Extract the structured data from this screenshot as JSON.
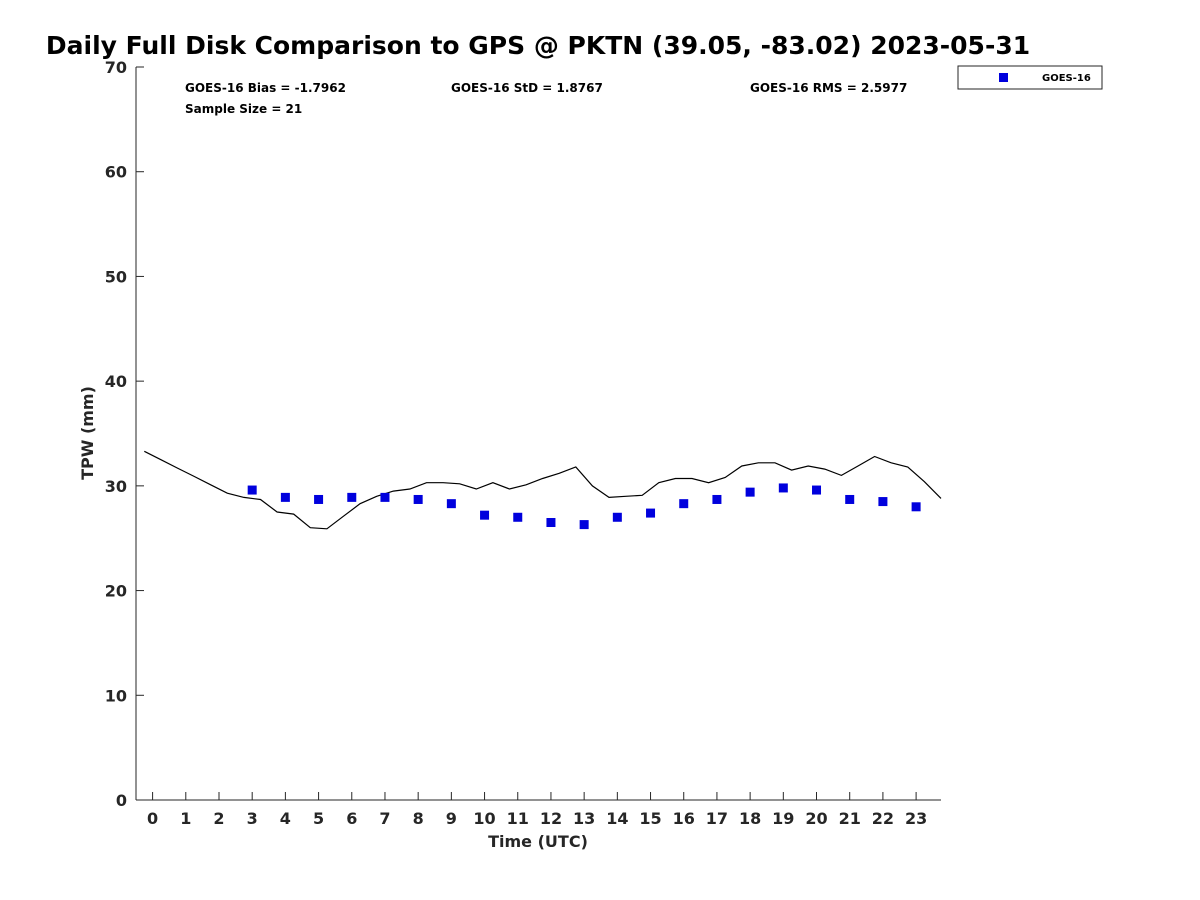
{
  "chart_data": {
    "type": "scatter",
    "title": "Daily Full Disk Comparison to GPS @ PKTN (39.05, -83.02) 2023-05-31",
    "xlabel": "Time (UTC)",
    "ylabel": "TPW (mm)",
    "xlim": [
      -0.5,
      23.75
    ],
    "ylim": [
      0,
      70
    ],
    "x_ticks": [
      0,
      1,
      2,
      3,
      4,
      5,
      6,
      7,
      8,
      9,
      10,
      11,
      12,
      13,
      14,
      15,
      16,
      17,
      18,
      19,
      20,
      21,
      22,
      23
    ],
    "y_ticks": [
      0,
      10,
      20,
      30,
      40,
      50,
      60,
      70
    ],
    "grid": false,
    "legend": {
      "position": "top-right",
      "entries": [
        "GOES-16"
      ]
    },
    "stats": {
      "bias": "GOES-16 Bias = -1.7962",
      "std": "GOES-16 StD = 1.8767",
      "rms": "GOES-16 RMS = 2.5977",
      "sample": "Sample Size = 21"
    },
    "series": [
      {
        "name": "GOES-16",
        "kind": "scatter",
        "marker": "square",
        "color": "#0000dd",
        "x": [
          3,
          4,
          5,
          6,
          7,
          8,
          9,
          10,
          11,
          12,
          13,
          14,
          15,
          16,
          17,
          18,
          19,
          20,
          21,
          22,
          23
        ],
        "y": [
          29.6,
          28.9,
          28.7,
          28.9,
          28.9,
          28.7,
          28.3,
          27.2,
          27.0,
          26.5,
          26.3,
          27.0,
          27.4,
          28.3,
          28.7,
          29.4,
          29.8,
          29.6,
          28.7,
          28.5,
          28.0
        ]
      },
      {
        "kind": "line",
        "color": "#000000",
        "x": [
          -0.25,
          0.25,
          0.75,
          1.25,
          1.75,
          2.25,
          2.75,
          3.25,
          3.75,
          4.25,
          4.75,
          5.25,
          5.75,
          6.25,
          6.75,
          7.25,
          7.75,
          8.25,
          8.75,
          9.25,
          9.75,
          10.25,
          10.75,
          11.25,
          11.75,
          12.25,
          12.75,
          13.25,
          13.75,
          14.25,
          14.75,
          15.25,
          15.75,
          16.25,
          16.75,
          17.25,
          17.75,
          18.25,
          18.75,
          19.25,
          19.75,
          20.25,
          20.75,
          21.25,
          21.75,
          22.25,
          22.75,
          23.25,
          23.75
        ],
        "y": [
          33.3,
          32.5,
          31.7,
          30.9,
          30.1,
          29.3,
          28.9,
          28.7,
          27.5,
          27.3,
          26.0,
          25.9,
          27.1,
          28.3,
          29.0,
          29.5,
          29.7,
          30.3,
          30.3,
          30.2,
          29.7,
          30.3,
          29.7,
          30.1,
          30.7,
          31.2,
          31.8,
          30.0,
          28.9,
          29.0,
          29.1,
          30.3,
          30.7,
          30.7,
          30.3,
          30.8,
          31.9,
          32.2,
          32.2,
          31.5,
          31.9,
          31.6,
          31.0,
          31.9,
          32.8,
          32.2,
          31.8,
          30.4,
          28.8
        ]
      }
    ]
  }
}
